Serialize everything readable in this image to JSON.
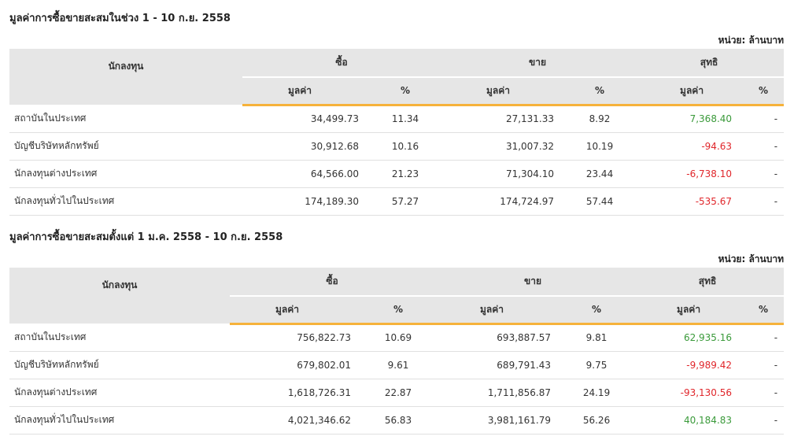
{
  "colors": {
    "accent": "#f6b23b",
    "header_bg": "#e6e6e6",
    "positive": "#3a9a3a",
    "negative": "#e0262b"
  },
  "table1": {
    "title": "มูลค่าการซื้อขายสะสมในช่วง 1 - 10 ก.ย. 2558",
    "unit": "หน่วย: ล้านบาท",
    "headers": {
      "investor": "นักลงทุน",
      "buy": "ซื้อ",
      "sell": "ขาย",
      "net": "สุทธิ",
      "value": "มูลค่า",
      "pct": "%"
    },
    "rows": [
      {
        "name": "สถาบันในประเทศ",
        "buy_value": "34,499.73",
        "buy_pct": "11.34",
        "sell_value": "27,131.33",
        "sell_pct": "8.92",
        "net_value": "7,368.40",
        "net_pct": "-",
        "net_sign": "pos"
      },
      {
        "name": "บัญชีบริษัทหลักทรัพย์",
        "buy_value": "30,912.68",
        "buy_pct": "10.16",
        "sell_value": "31,007.32",
        "sell_pct": "10.19",
        "net_value": "-94.63",
        "net_pct": "-",
        "net_sign": "neg"
      },
      {
        "name": "นักลงทุนต่างประเทศ",
        "buy_value": "64,566.00",
        "buy_pct": "21.23",
        "sell_value": "71,304.10",
        "sell_pct": "23.44",
        "net_value": "-6,738.10",
        "net_pct": "-",
        "net_sign": "neg"
      },
      {
        "name": "นักลงทุนทั่วไปในประเทศ",
        "buy_value": "174,189.30",
        "buy_pct": "57.27",
        "sell_value": "174,724.97",
        "sell_pct": "57.44",
        "net_value": "-535.67",
        "net_pct": "-",
        "net_sign": "neg"
      }
    ]
  },
  "table2": {
    "title": "มูลค่าการซื้อขายสะสมตั้งแต่ 1 ม.ค. 2558 - 10 ก.ย. 2558",
    "unit": "หน่วย: ล้านบาท",
    "headers": {
      "investor": "นักลงทุน",
      "buy": "ซื้อ",
      "sell": "ขาย",
      "net": "สุทธิ",
      "value": "มูลค่า",
      "pct": "%"
    },
    "rows": [
      {
        "name": "สถาบันในประเทศ",
        "buy_value": "756,822.73",
        "buy_pct": "10.69",
        "sell_value": "693,887.57",
        "sell_pct": "9.81",
        "net_value": "62,935.16",
        "net_pct": "-",
        "net_sign": "pos"
      },
      {
        "name": "บัญชีบริษัทหลักทรัพย์",
        "buy_value": "679,802.01",
        "buy_pct": "9.61",
        "sell_value": "689,791.43",
        "sell_pct": "9.75",
        "net_value": "-9,989.42",
        "net_pct": "-",
        "net_sign": "neg"
      },
      {
        "name": "นักลงทุนต่างประเทศ",
        "buy_value": "1,618,726.31",
        "buy_pct": "22.87",
        "sell_value": "1,711,856.87",
        "sell_pct": "24.19",
        "net_value": "-93,130.56",
        "net_pct": "-",
        "net_sign": "neg"
      },
      {
        "name": "นักลงทุนทั่วไปในประเทศ",
        "buy_value": "4,021,346.62",
        "buy_pct": "56.83",
        "sell_value": "3,981,161.79",
        "sell_pct": "56.26",
        "net_value": "40,184.83",
        "net_pct": "-",
        "net_sign": "pos"
      }
    ]
  }
}
